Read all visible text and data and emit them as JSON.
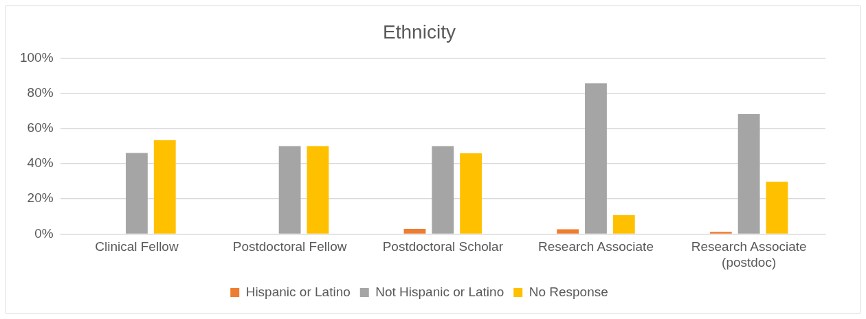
{
  "chart_data": {
    "type": "bar",
    "title": "Ethnicity",
    "categories": [
      "Clinical Fellow",
      "Postdoctoral Fellow",
      "Postdoctoral Scholar",
      "Research Associate",
      "Research Associate (postdoc)"
    ],
    "series": [
      {
        "name": "Hispanic or Latino",
        "color": "#ed7d31",
        "values": [
          0,
          0,
          2.9,
          2.7,
          1.2
        ]
      },
      {
        "name": "Not Hispanic or Latino",
        "color": "#a5a5a5",
        "values": [
          46.1,
          50,
          50,
          85.7,
          68.2
        ]
      },
      {
        "name": "No Response",
        "color": "#ffc000",
        "values": [
          53.3,
          50,
          45.9,
          10.7,
          29.7
        ]
      }
    ],
    "ylim": [
      0,
      100
    ],
    "yticks": [
      {
        "value": 0,
        "label": "0%"
      },
      {
        "value": 20,
        "label": "20%"
      },
      {
        "value": 40,
        "label": "40%"
      },
      {
        "value": 60,
        "label": "60%"
      },
      {
        "value": 80,
        "label": "80%"
      },
      {
        "value": 100,
        "label": "100%"
      }
    ],
    "grid": "y",
    "legend": "bottom"
  }
}
